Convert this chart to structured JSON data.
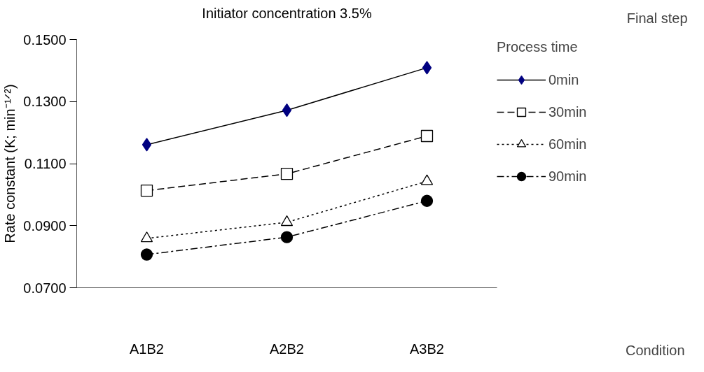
{
  "chart_data": {
    "type": "line",
    "title": "Initiator concentration 3.5%",
    "ylabel": "Rate constant (K; min⁻¹ᐟ²)",
    "legend_title": "Process time",
    "annotations": [
      "Final step",
      "Condition"
    ],
    "categories": [
      "A1B2",
      "A2B2",
      "A3B2"
    ],
    "series": [
      {
        "name": "0min",
        "color": "#000080",
        "marker": "diamond",
        "line_style": "solid",
        "values": [
          0.1161,
          0.1272,
          0.1409
        ]
      },
      {
        "name": "30min",
        "color": "#000000",
        "marker": "square",
        "line_style": "dashed",
        "values": [
          0.1013,
          0.1067,
          0.1189
        ]
      },
      {
        "name": "60min",
        "color": "#000000",
        "marker": "triangle",
        "line_style": "dotted",
        "values": [
          0.0859,
          0.0911,
          0.1043
        ]
      },
      {
        "name": "90min",
        "color": "#000000",
        "marker": "circle",
        "line_style": "dashdot",
        "values": [
          0.0807,
          0.0863,
          0.098
        ]
      }
    ],
    "ylim": [
      0.07,
      0.15
    ],
    "yticks": [
      {
        "value": 0.07,
        "label": "0.0700"
      },
      {
        "value": 0.09,
        "label": "0.0900"
      },
      {
        "value": 0.11,
        "label": "0.1100"
      },
      {
        "value": 0.13,
        "label": "0.1300"
      },
      {
        "value": 0.15,
        "label": "0.1500"
      }
    ],
    "grid": false,
    "legend": "right"
  }
}
